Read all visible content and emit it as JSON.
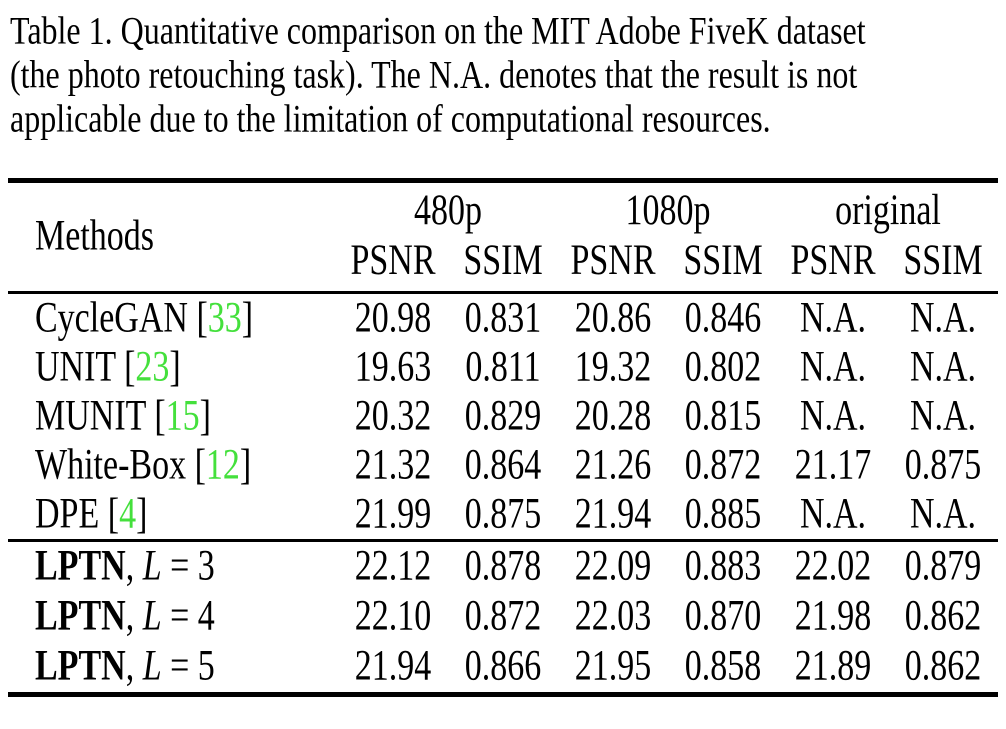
{
  "colors": {
    "background": "#ffffff",
    "text": "#000000",
    "citation": "#44e03c"
  },
  "caption": {
    "lines": [
      "Table 1. Quantitative comparison on the MIT Adobe FiveK dataset",
      "(the photo retouching task). The N.A. denotes that the result is not",
      "applicable due to the limitation of computational resources."
    ]
  },
  "table": {
    "methods_label": "Methods",
    "cite_open": " [",
    "cite_close": "]",
    "groups": [
      {
        "label": "480p"
      },
      {
        "label": "1080p"
      },
      {
        "label": "original"
      }
    ],
    "subheaders": [
      "PSNR",
      "SSIM",
      "PSNR",
      "SSIM",
      "PSNR",
      "SSIM"
    ],
    "rows": [
      {
        "method": "CycleGAN",
        "cite": "33",
        "values": [
          "20.98",
          "0.831",
          "20.86",
          "0.846",
          "N.A.",
          "N.A."
        ]
      },
      {
        "method": "UNIT",
        "cite": "23",
        "values": [
          "19.63",
          "0.811",
          "19.32",
          "0.802",
          "N.A.",
          "N.A."
        ]
      },
      {
        "method": "MUNIT",
        "cite": "15",
        "values": [
          "20.32",
          "0.829",
          "20.28",
          "0.815",
          "N.A.",
          "N.A."
        ]
      },
      {
        "method": "White-Box",
        "cite": "12",
        "values": [
          "21.32",
          "0.864",
          "21.26",
          "0.872",
          "21.17",
          "0.875"
        ]
      },
      {
        "method": "DPE",
        "cite": "4",
        "values": [
          "21.99",
          "0.875",
          "21.94",
          "0.885",
          "N.A.",
          "N.A."
        ]
      }
    ],
    "lptn_rows": [
      {
        "name": "LPTN",
        "sep": ", ",
        "var": "L",
        "eq": " = 3",
        "values": [
          "22.12",
          "0.878",
          "22.09",
          "0.883",
          "22.02",
          "0.879"
        ]
      },
      {
        "name": "LPTN",
        "sep": ", ",
        "var": "L",
        "eq": " = 4",
        "values": [
          "22.10",
          "0.872",
          "22.03",
          "0.870",
          "21.98",
          "0.862"
        ]
      },
      {
        "name": "LPTN",
        "sep": ", ",
        "var": "L",
        "eq": " = 5",
        "values": [
          "21.94",
          "0.866",
          "21.95",
          "0.858",
          "21.89",
          "0.862"
        ]
      }
    ]
  }
}
